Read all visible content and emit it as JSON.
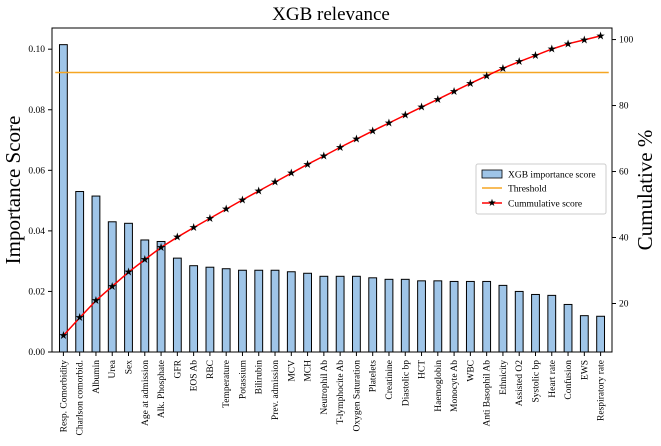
{
  "chart_data": {
    "type": "bar",
    "title": "XGB relevance",
    "ylabel": "Importance Score",
    "y2label": "Cumulative %",
    "categories": [
      "Resp. Comorbidity",
      "Charlson comorbid.",
      "Albumin",
      "Urea",
      "Sex",
      "Age at admission",
      "Alk. Phosphate",
      "GFR",
      "EOS Ab",
      "RBC",
      "Temperature",
      "Potassium",
      "Bilirubin",
      "Prev. admission",
      "MCV",
      "MCH",
      "Neutrophil Ab",
      "T-lymphocite Ab",
      "Oxygen Saturation",
      "Platelets",
      "Creatinine",
      "Diastolic bp",
      "HCT",
      "Haemoglobin",
      "Monocyte Ab",
      "WBC",
      "Anti Basophil Ab",
      "Ethnicity",
      "Assisted O2",
      "Systolic bp",
      "Heart rate",
      "Confusion",
      "EWS",
      "Respiratory rate"
    ],
    "series": [
      {
        "name": "XGB importance score",
        "type": "bar",
        "axis": "left",
        "color": "#9fc5e8",
        "values": [
          0.1015,
          0.053,
          0.0515,
          0.043,
          0.0425,
          0.037,
          0.0365,
          0.031,
          0.0285,
          0.028,
          0.0275,
          0.027,
          0.027,
          0.027,
          0.0265,
          0.026,
          0.025,
          0.025,
          0.025,
          0.0245,
          0.024,
          0.024,
          0.0235,
          0.0235,
          0.0233,
          0.0233,
          0.0233,
          0.022,
          0.02,
          0.019,
          0.0187,
          0.0157,
          0.012,
          0.0118
        ]
      },
      {
        "name": "Threshold",
        "type": "hline",
        "axis": "right",
        "color": "#f5a623",
        "value": 90
      },
      {
        "name": "Cummulative score",
        "type": "line",
        "axis": "right",
        "color": "#ff0000",
        "marker": "star",
        "values": [
          10.3,
          15.7,
          20.9,
          25.2,
          29.5,
          33.3,
          37.0,
          40.1,
          43.0,
          45.8,
          48.6,
          51.4,
          54.1,
          56.8,
          59.5,
          62.2,
          64.7,
          67.3,
          69.8,
          72.3,
          74.7,
          77.1,
          79.5,
          81.9,
          84.3,
          86.7,
          89.0,
          91.3,
          93.3,
          95.2,
          97.1,
          98.7,
          99.9,
          101.1
        ]
      }
    ],
    "ylim": [
      0,
      0.107
    ],
    "yticks": [
      "0.00",
      "0.02",
      "0.04",
      "0.06",
      "0.08",
      "0.10"
    ],
    "y2lim": [
      5.3,
      103.5
    ],
    "y2ticks": [
      "20",
      "40",
      "60",
      "80",
      "100"
    ],
    "grid": false,
    "legend_position": "center-right"
  }
}
